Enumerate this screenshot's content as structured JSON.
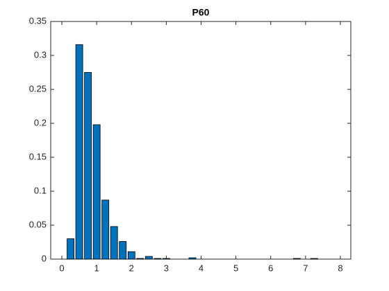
{
  "chart_data": {
    "type": "bar",
    "title": "P60",
    "x": [
      0.25,
      0.5,
      0.75,
      1.0,
      1.25,
      1.5,
      1.75,
      2.0,
      2.25,
      2.5,
      2.75,
      3.0,
      3.75,
      6.75,
      7.25
    ],
    "values": [
      0.03,
      0.316,
      0.275,
      0.198,
      0.087,
      0.048,
      0.026,
      0.011,
      0.001,
      0.004,
      0.001,
      0.001,
      0.002,
      0.001,
      0.001
    ],
    "color": "#0072bd",
    "xlim": [
      -0.32,
      8.3
    ],
    "xticks": [
      0,
      1,
      2,
      3,
      4,
      5,
      6,
      7,
      8
    ],
    "ylim": [
      0,
      0.35
    ],
    "yticks": [
      0,
      0.05,
      0.1,
      0.15,
      0.2,
      0.25,
      0.3,
      0.35
    ],
    "grid": false
  }
}
